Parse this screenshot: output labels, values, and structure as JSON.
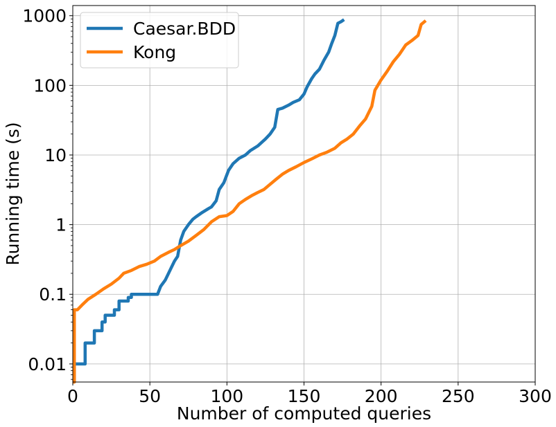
{
  "chart_data": {
    "type": "line",
    "xlabel": "Number of computed queries",
    "ylabel": "Running time (s)",
    "xlim": [
      0,
      300
    ],
    "ylim": [
      0.0055,
      1400
    ],
    "yscale": "log",
    "grid": true,
    "legend_position": "upper-left",
    "x_ticks": [
      0,
      50,
      100,
      150,
      200,
      250,
      300
    ],
    "x_tick_labels": [
      "0",
      "50",
      "100",
      "150",
      "200",
      "250",
      "300"
    ],
    "y_ticks": [
      0.01,
      0.1,
      1,
      10,
      100,
      1000
    ],
    "y_tick_labels": [
      "0.01",
      "0.1",
      "1",
      "10",
      "100",
      "1000"
    ],
    "series": [
      {
        "name": "Caesar.BDD",
        "color": "#1f77b4",
        "points": [
          [
            0,
            0.0055
          ],
          [
            1,
            0.0055
          ],
          [
            1,
            0.01
          ],
          [
            8,
            0.01
          ],
          [
            8,
            0.02
          ],
          [
            14,
            0.02
          ],
          [
            14,
            0.03
          ],
          [
            19,
            0.03
          ],
          [
            19,
            0.04
          ],
          [
            21,
            0.04
          ],
          [
            21,
            0.05
          ],
          [
            27,
            0.05
          ],
          [
            27,
            0.06
          ],
          [
            30,
            0.06
          ],
          [
            30,
            0.08
          ],
          [
            36,
            0.08
          ],
          [
            36,
            0.09
          ],
          [
            38,
            0.09
          ],
          [
            38,
            0.1
          ],
          [
            55,
            0.1
          ],
          [
            57,
            0.13
          ],
          [
            60,
            0.16
          ],
          [
            63,
            0.22
          ],
          [
            66,
            0.3
          ],
          [
            68,
            0.35
          ],
          [
            70,
            0.6
          ],
          [
            72,
            0.8
          ],
          [
            75,
            1.0
          ],
          [
            78,
            1.2
          ],
          [
            80,
            1.3
          ],
          [
            84,
            1.5
          ],
          [
            88,
            1.7
          ],
          [
            90,
            1.8
          ],
          [
            93,
            2.2
          ],
          [
            95,
            3.2
          ],
          [
            98,
            4.0
          ],
          [
            101,
            6.0
          ],
          [
            104,
            7.5
          ],
          [
            108,
            9.0
          ],
          [
            112,
            10.0
          ],
          [
            115,
            11.5
          ],
          [
            120,
            13.5
          ],
          [
            125,
            17.0
          ],
          [
            128,
            20.0
          ],
          [
            131,
            25.0
          ],
          [
            133,
            45.0
          ],
          [
            136,
            47.0
          ],
          [
            140,
            52.0
          ],
          [
            143,
            57.0
          ],
          [
            147,
            62.0
          ],
          [
            150,
            75.0
          ],
          [
            152,
            95.0
          ],
          [
            155,
            125.0
          ],
          [
            157,
            145.0
          ],
          [
            160,
            170.0
          ],
          [
            163,
            230.0
          ],
          [
            166,
            300.0
          ],
          [
            168,
            400.0
          ],
          [
            170,
            520.0
          ],
          [
            172,
            780.0
          ],
          [
            174,
            820.0
          ],
          [
            176,
            880.0
          ]
        ]
      },
      {
        "name": "Kong",
        "color": "#ff7f0e",
        "points": [
          [
            0,
            0.0055
          ],
          [
            1,
            0.0055
          ],
          [
            1,
            0.06
          ],
          [
            3,
            0.06
          ],
          [
            6,
            0.07
          ],
          [
            10,
            0.085
          ],
          [
            15,
            0.1
          ],
          [
            20,
            0.12
          ],
          [
            25,
            0.14
          ],
          [
            30,
            0.17
          ],
          [
            33,
            0.2
          ],
          [
            38,
            0.22
          ],
          [
            43,
            0.25
          ],
          [
            48,
            0.27
          ],
          [
            53,
            0.3
          ],
          [
            57,
            0.35
          ],
          [
            62,
            0.4
          ],
          [
            66,
            0.44
          ],
          [
            70,
            0.5
          ],
          [
            75,
            0.58
          ],
          [
            80,
            0.7
          ],
          [
            85,
            0.85
          ],
          [
            90,
            1.1
          ],
          [
            95,
            1.3
          ],
          [
            100,
            1.35
          ],
          [
            104,
            1.55
          ],
          [
            108,
            2.0
          ],
          [
            112,
            2.3
          ],
          [
            116,
            2.6
          ],
          [
            120,
            2.9
          ],
          [
            124,
            3.2
          ],
          [
            128,
            3.8
          ],
          [
            132,
            4.5
          ],
          [
            136,
            5.3
          ],
          [
            140,
            6.0
          ],
          [
            145,
            6.8
          ],
          [
            150,
            7.8
          ],
          [
            155,
            8.8
          ],
          [
            160,
            10.0
          ],
          [
            165,
            11.0
          ],
          [
            170,
            12.5
          ],
          [
            174,
            15.0
          ],
          [
            178,
            17.0
          ],
          [
            182,
            20.0
          ],
          [
            186,
            26.0
          ],
          [
            190,
            33.0
          ],
          [
            194,
            50.0
          ],
          [
            196,
            85.0
          ],
          [
            200,
            120.0
          ],
          [
            204,
            160.0
          ],
          [
            208,
            220.0
          ],
          [
            212,
            280.0
          ],
          [
            216,
            380.0
          ],
          [
            220,
            440.0
          ],
          [
            224,
            520.0
          ],
          [
            226,
            750.0
          ],
          [
            229,
            850.0
          ]
        ]
      }
    ]
  }
}
